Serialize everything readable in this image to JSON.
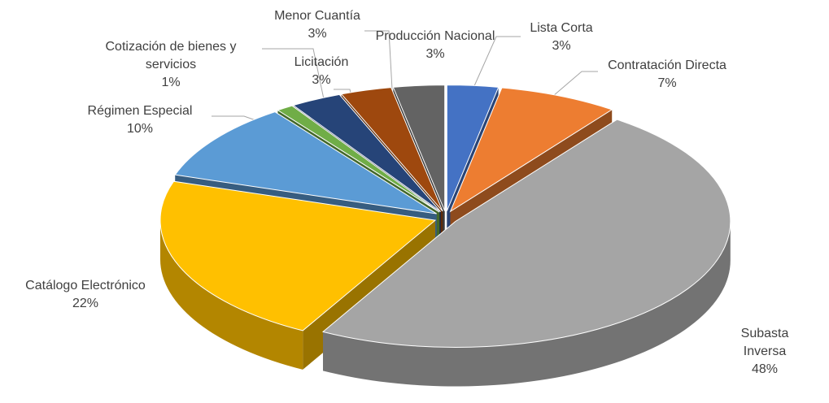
{
  "chart_data": {
    "type": "pie",
    "categories": [
      "Lista Corta",
      "Contratación Directa",
      "Subasta Inversa",
      "Catálogo Electrónico",
      "Régimen Especial",
      "Cotización de bienes y servicios",
      "Licitación",
      "Menor Cuantía",
      "Producción Nacional"
    ],
    "values": [
      3,
      7,
      48,
      22,
      10,
      1,
      3,
      3,
      3
    ],
    "value_labels": [
      "3%",
      "7%",
      "48%",
      "22%",
      "10%",
      "1%",
      "3%",
      "3%",
      "3%"
    ],
    "colors": [
      "#4472c4",
      "#ed7d31",
      "#a5a5a5",
      "#ffc000",
      "#5b9bd5",
      "#70ad47",
      "#264478",
      "#9e480e",
      "#636363"
    ]
  }
}
